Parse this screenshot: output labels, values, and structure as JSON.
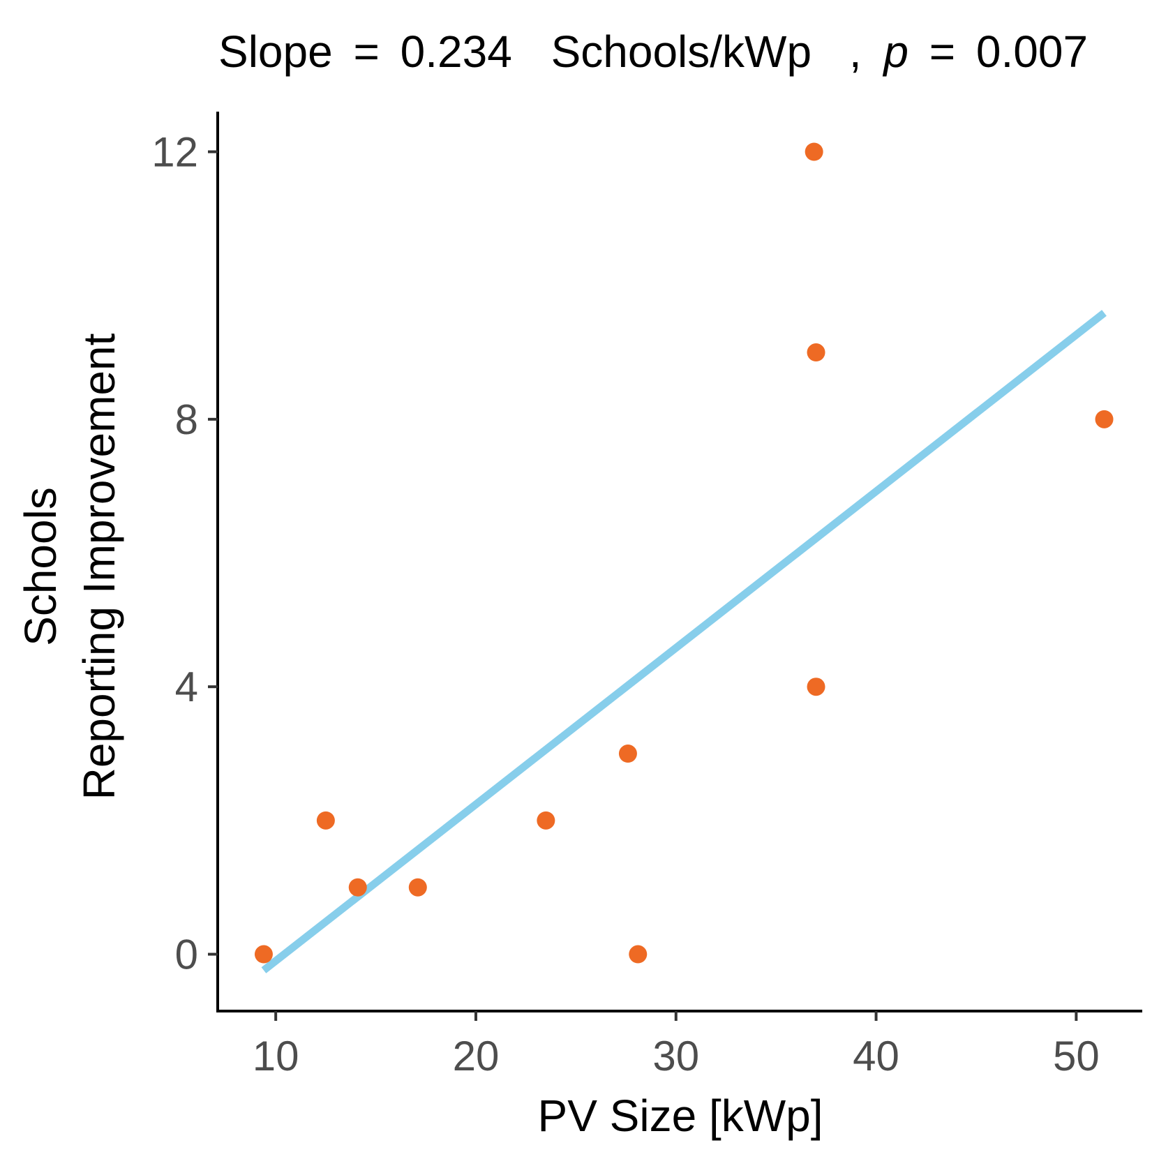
{
  "chart_data": {
    "type": "scatter",
    "title": {
      "slope_label": "Slope",
      "eq1": "=",
      "slope_value": "0.234",
      "units": "Schools/kWp",
      "separator": ",",
      "p_label": "p",
      "eq2": "=",
      "p_value": "0.007"
    },
    "xlabel": "PV Size [kWp]",
    "ylabel_lines": [
      "Schools",
      "Reporting Improvement"
    ],
    "xlim": [
      7.1,
      53.3
    ],
    "ylim": [
      -0.85,
      12.6
    ],
    "xticks": [
      10,
      20,
      30,
      40,
      50
    ],
    "yticks": [
      0,
      4,
      8,
      12
    ],
    "grid": false,
    "point_color": "#EE6A24",
    "line_color": "#87CEEB",
    "points": [
      {
        "x": 9.4,
        "y": 0
      },
      {
        "x": 12.5,
        "y": 2
      },
      {
        "x": 14.1,
        "y": 1
      },
      {
        "x": 17.1,
        "y": 1
      },
      {
        "x": 23.5,
        "y": 2
      },
      {
        "x": 27.6,
        "y": 3
      },
      {
        "x": 28.1,
        "y": 0
      },
      {
        "x": 36.9,
        "y": 12
      },
      {
        "x": 37.0,
        "y": 9
      },
      {
        "x": 37.0,
        "y": 4
      },
      {
        "x": 51.4,
        "y": 8
      }
    ],
    "fit_line": {
      "x1": 9.4,
      "y1": -0.24,
      "x2": 51.4,
      "y2": 9.59
    }
  }
}
